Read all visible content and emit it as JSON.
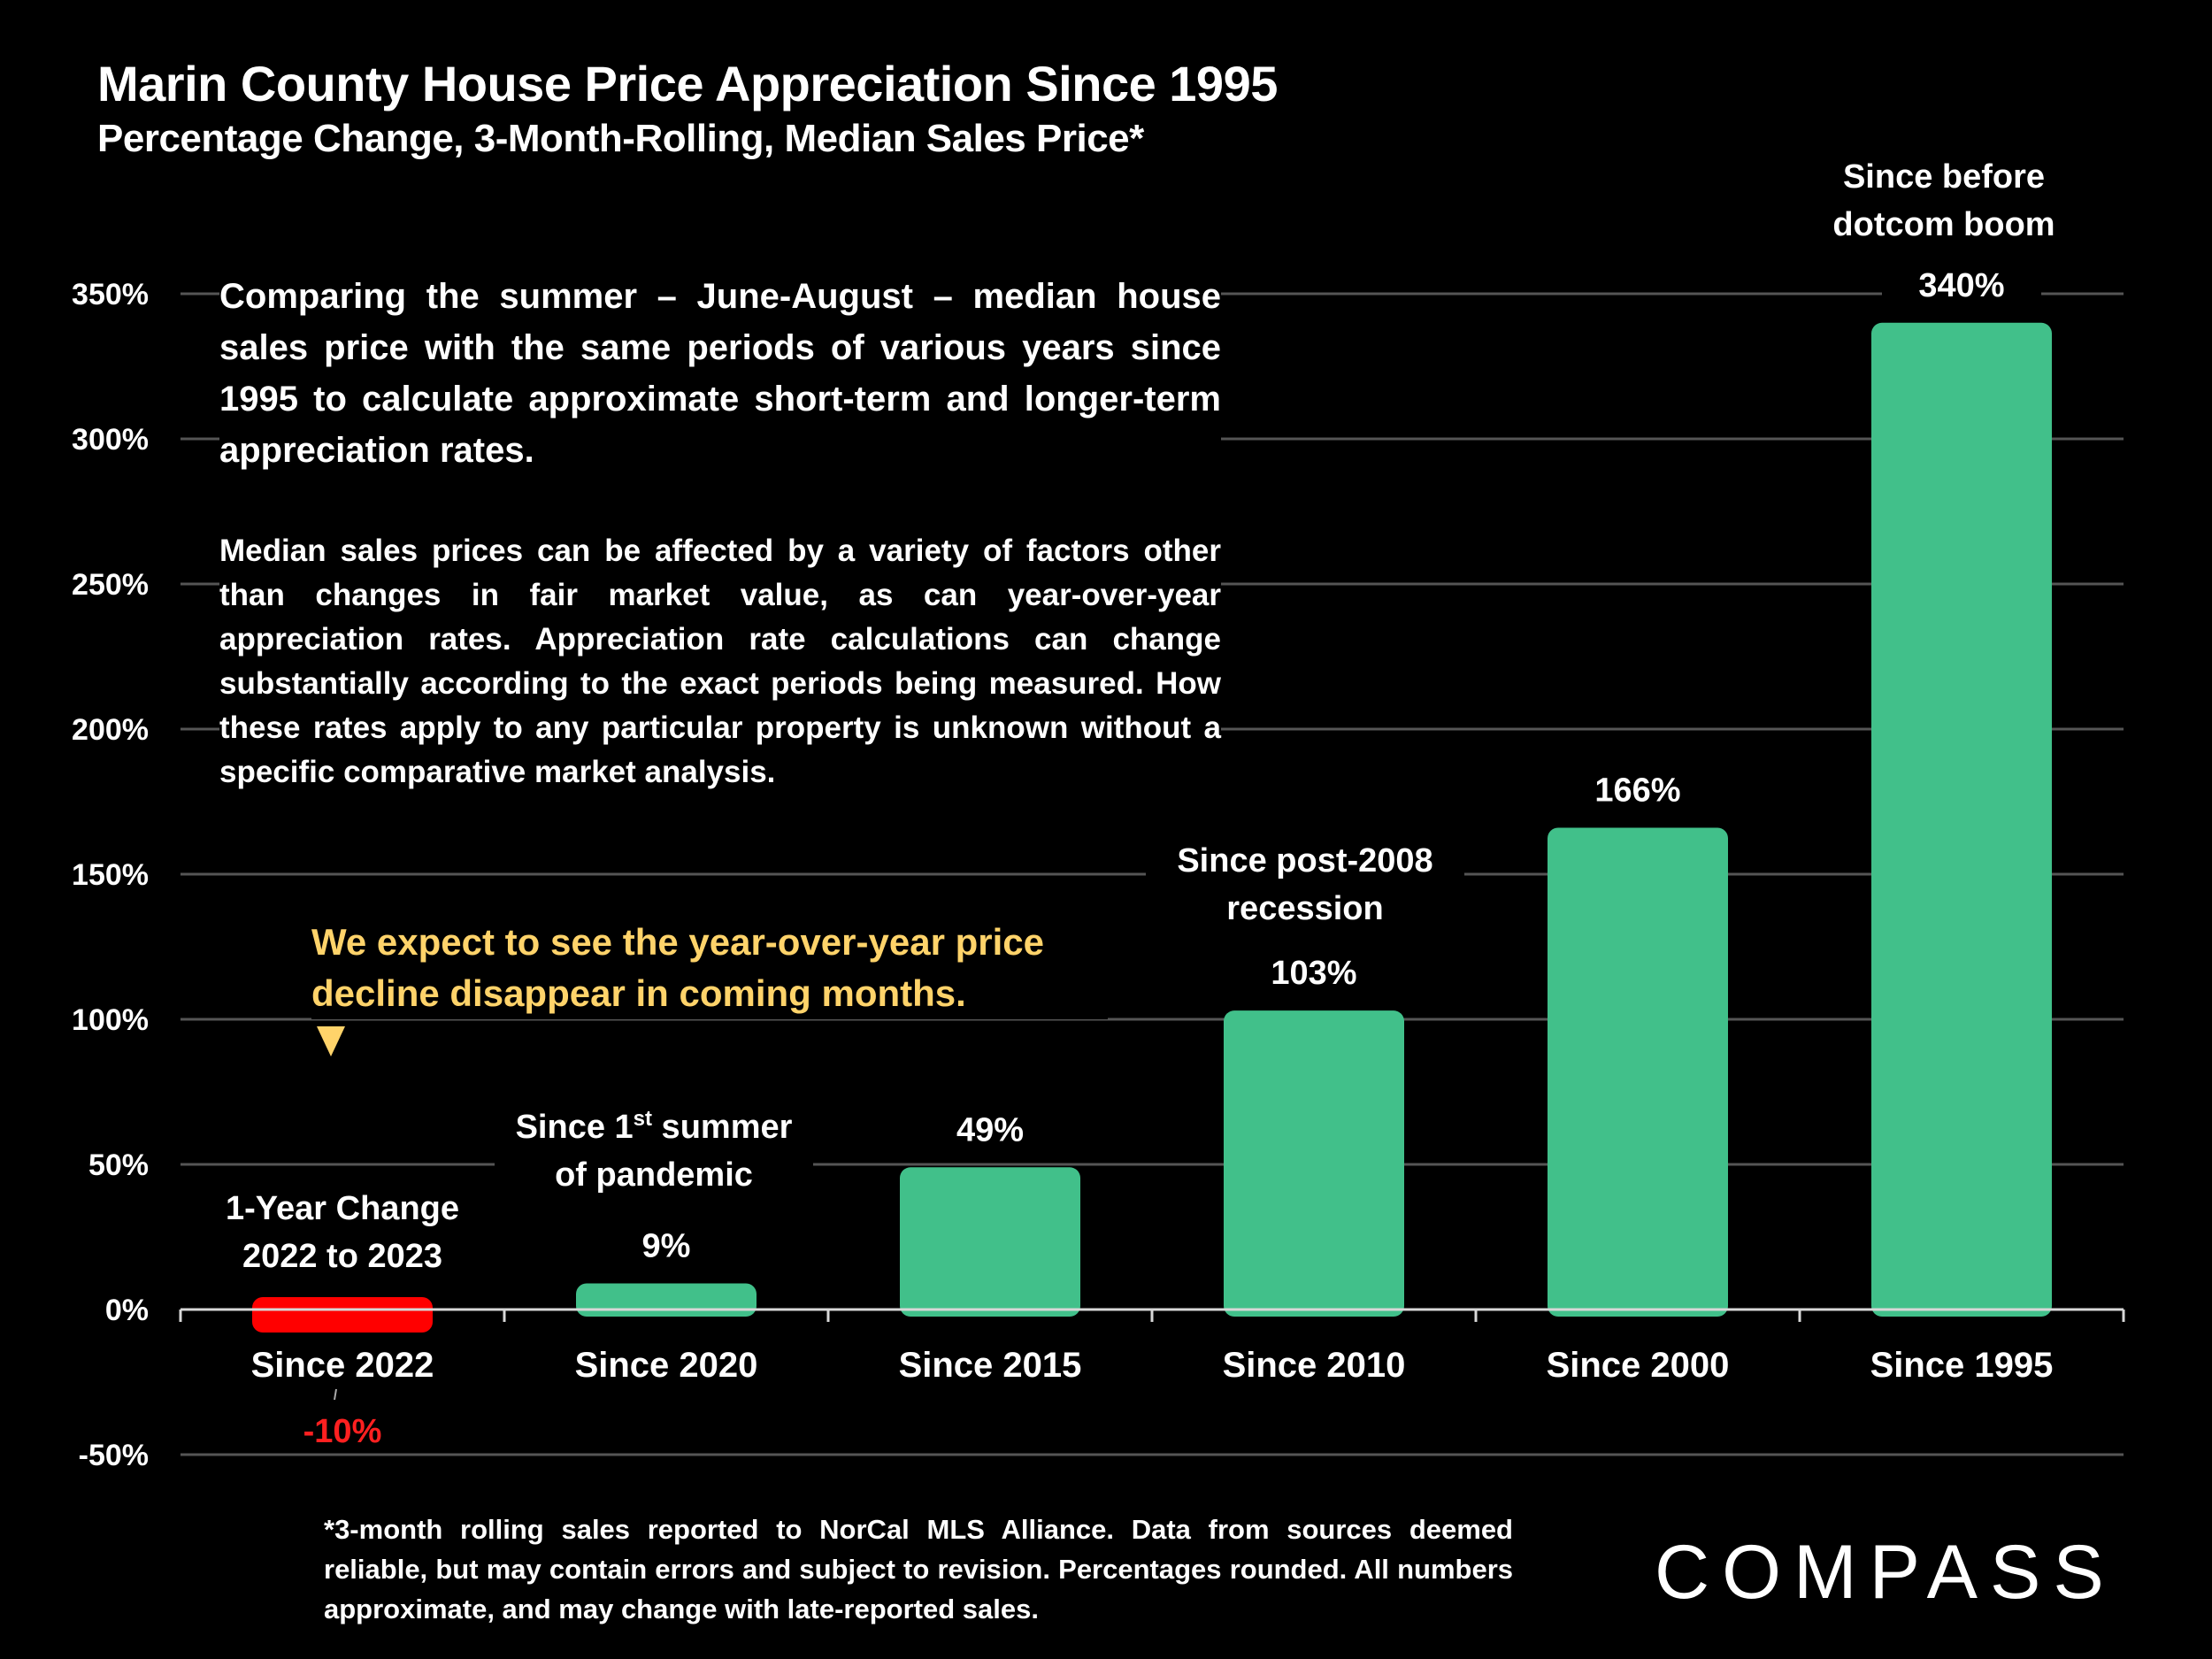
{
  "header": {
    "title": "Marin County House Price Appreciation Since 1995",
    "subtitle": "Percentage Change, 3-Month-Rolling, Median Sales Price*"
  },
  "text_box": {
    "main": "Comparing the summer – June-August – median house sales price with the same periods of various years since 1995 to calculate approximate short-term and longer-term appreciation rates.",
    "caveat": "Median sales prices can be affected by a variety of factors other than changes in fair market value, as can year-over-year appreciation rates. Appreciation rate calculations can change substantially according to the exact periods being measured. How these rates apply to any particular property is unknown without a specific comparative market analysis."
  },
  "callout": {
    "text": "We expect to see the year-over-year price decline disappear in coming months.",
    "color": "#FFD36A"
  },
  "footnote": "*3-month rolling sales reported to NorCal MLS Alliance. Data from sources deemed reliable, but may contain errors and subject to revision. Percentages rounded. All numbers approximate, and may change with late-reported sales.",
  "logo": "COMPASS",
  "chart_data": {
    "type": "bar",
    "title": "Marin County House Price Appreciation Since 1995",
    "subtitle": "Percentage Change, 3-Month-Rolling, Median Sales Price*",
    "xlabel": "",
    "ylabel": "",
    "ylim": [
      -50,
      350
    ],
    "yticks": [
      -50,
      0,
      50,
      100,
      150,
      200,
      250,
      300,
      350
    ],
    "ytick_labels": [
      "-50%",
      "0%",
      "50%",
      "100%",
      "150%",
      "200%",
      "250%",
      "300%",
      "350%"
    ],
    "grid": true,
    "categories": [
      "Since 2022",
      "Since 2020",
      "Since 2015",
      "Since 2010",
      "Since 2000",
      "Since 1995"
    ],
    "values": [
      -10,
      9,
      49,
      103,
      166,
      340
    ],
    "value_labels": [
      "-10%",
      "9%",
      "49%",
      "103%",
      "166%",
      "340%"
    ],
    "annotations": [
      [
        "1-Year Change",
        "2022 to 2023"
      ],
      [
        "Since 1st summer",
        "of pandemic"
      ],
      [],
      [
        "Since post-2008",
        "recession"
      ],
      [],
      [
        "Since before",
        "dotcom boom"
      ]
    ],
    "colors": {
      "positive": "#41C08A",
      "negative": "#FF0000",
      "negative_label": "#FF2020"
    }
  }
}
